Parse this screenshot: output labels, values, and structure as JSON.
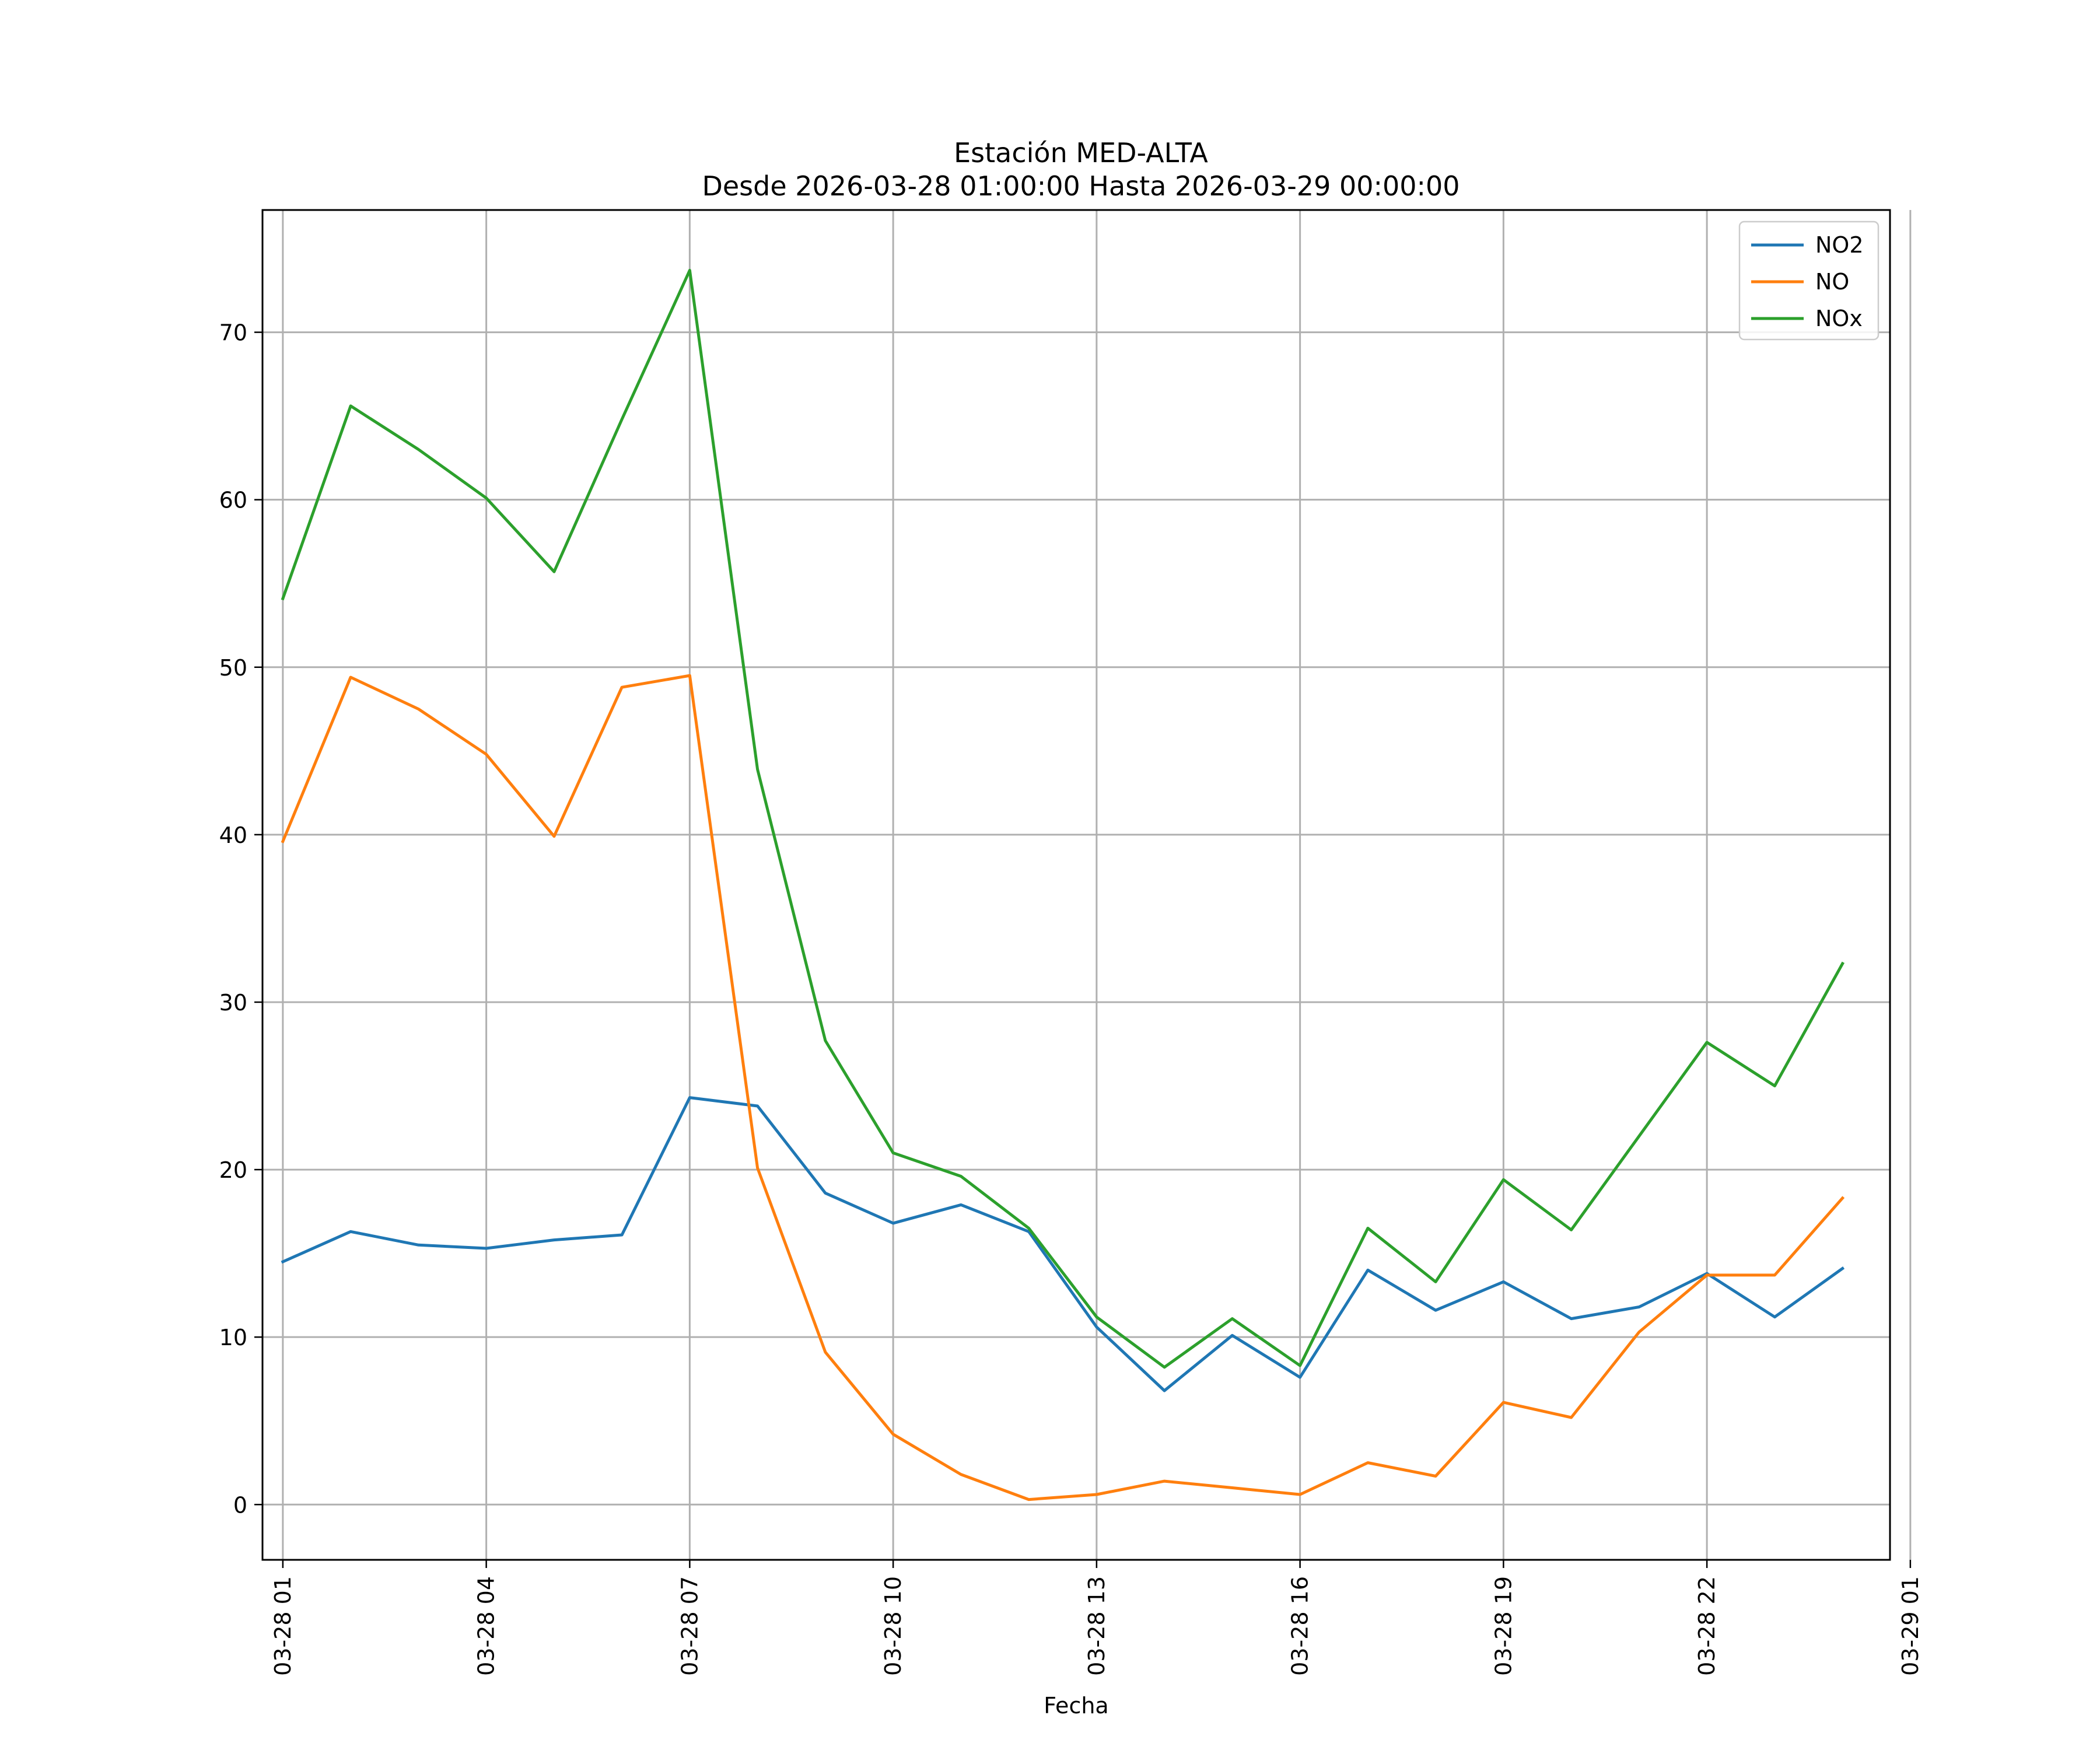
{
  "chart_data": {
    "type": "line",
    "title": "Estación MED-ALTA",
    "subtitle": "Desde 2026-03-28 01:00:00 Hasta 2026-03-29 00:00:00",
    "xlabel": "Fecha",
    "ylabel": "",
    "xlim": [
      0.7,
      24.7
    ],
    "ylim": [
      -3.3,
      77.3
    ],
    "grid": true,
    "legend_position": "upper right",
    "x_ticks": [
      {
        "x": 1,
        "label": "03-28 01"
      },
      {
        "x": 4,
        "label": "03-28 04"
      },
      {
        "x": 7,
        "label": "03-28 07"
      },
      {
        "x": 10,
        "label": "03-28 10"
      },
      {
        "x": 13,
        "label": "03-28 13"
      },
      {
        "x": 16,
        "label": "03-28 16"
      },
      {
        "x": 19,
        "label": "03-28 19"
      },
      {
        "x": 22,
        "label": "03-28 22"
      },
      {
        "x": 25,
        "label": "03-29 01"
      }
    ],
    "y_ticks": [
      0,
      10,
      20,
      30,
      40,
      50,
      60,
      70
    ],
    "x": [
      1,
      2,
      3,
      4,
      5,
      6,
      7,
      8,
      9,
      10,
      11,
      12,
      13,
      14,
      15,
      16,
      17,
      18,
      19,
      20,
      21,
      22,
      23,
      24
    ],
    "series": [
      {
        "name": "NO2",
        "color": "#1f77b4",
        "values": [
          14.5,
          16.3,
          15.5,
          15.3,
          15.8,
          16.1,
          24.3,
          23.8,
          18.6,
          16.8,
          17.9,
          16.3,
          10.6,
          6.8,
          10.1,
          7.6,
          14.0,
          11.6,
          13.3,
          11.1,
          11.8,
          13.8,
          11.2,
          14.1
        ]
      },
      {
        "name": "NO",
        "color": "#ff7f0e",
        "values": [
          39.6,
          49.4,
          47.5,
          44.8,
          39.9,
          48.8,
          49.5,
          20.1,
          9.1,
          4.2,
          1.8,
          0.3,
          0.6,
          1.4,
          1.0,
          0.6,
          2.5,
          1.7,
          6.1,
          5.2,
          10.3,
          13.7,
          13.7,
          18.3
        ]
      },
      {
        "name": "NOx",
        "color": "#2ca02c",
        "values": [
          54.1,
          65.6,
          63.0,
          60.1,
          55.7,
          64.8,
          73.7,
          43.9,
          27.7,
          21.0,
          19.6,
          16.5,
          11.2,
          8.2,
          11.1,
          8.3,
          16.5,
          13.3,
          19.4,
          16.4,
          22.0,
          27.6,
          25.0,
          32.3
        ]
      }
    ]
  }
}
